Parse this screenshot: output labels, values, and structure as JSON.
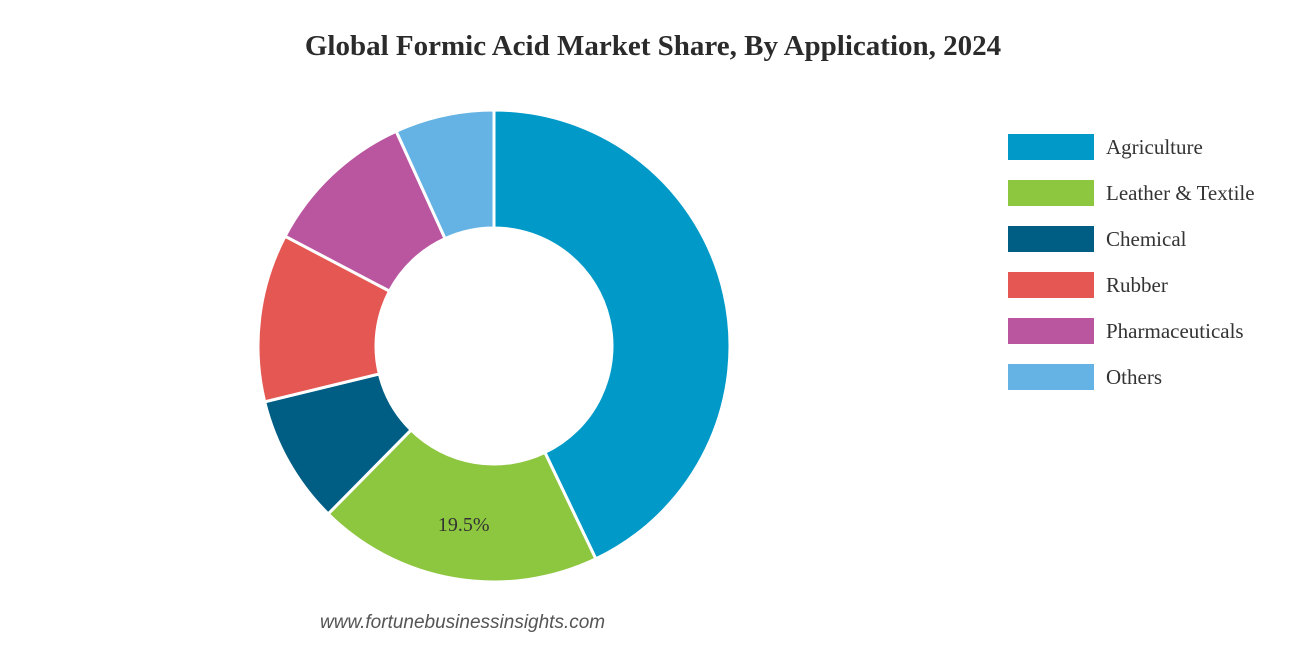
{
  "chart_data": {
    "type": "pie",
    "title": "Global Formic Acid Market Share, By Application, 2024",
    "categories": [
      "Agriculture",
      "Leather & Textile",
      "Chemical",
      "Rubber",
      "Pharmaceuticals",
      "Others"
    ],
    "values": [
      42.9,
      19.5,
      8.8,
      11.5,
      10.5,
      6.8
    ],
    "colors": [
      "#0099c8",
      "#8dc63f",
      "#005e85",
      "#e45753",
      "#b9569f",
      "#65b3e4"
    ],
    "data_labels": [
      "",
      "19.5%",
      "",
      "",
      "",
      ""
    ],
    "donut": true,
    "legend_position": "right"
  },
  "source": "www.fortunebusinessinsights.com"
}
